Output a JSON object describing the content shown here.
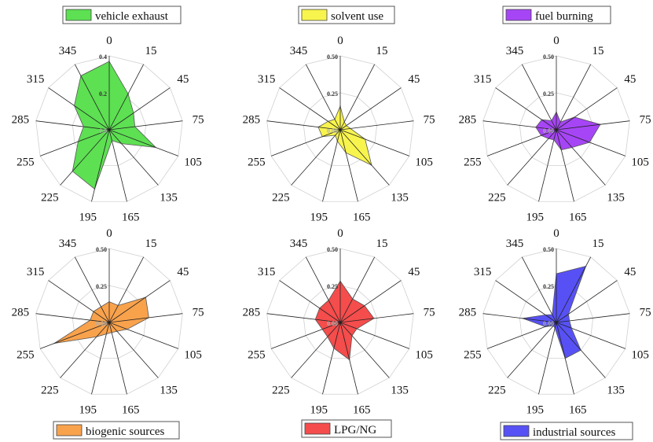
{
  "chart_data": [
    {
      "type": "radar",
      "legend": "vehicle exhaust",
      "color": "#5de052",
      "rmax": 0.4,
      "tick_values": [
        0.4,
        0.2,
        0.0
      ],
      "tick_labels": [
        "0.4",
        "0.2",
        "0.0"
      ],
      "directions": [
        "0",
        "15",
        "45",
        "75",
        "105",
        "135",
        "165",
        "195",
        "225",
        "255",
        "285",
        "315",
        "345"
      ],
      "values": [
        0.37,
        0.22,
        0.16,
        0.14,
        0.27,
        0.1,
        0.06,
        0.33,
        0.3,
        0.18,
        0.14,
        0.23,
        0.33
      ]
    },
    {
      "type": "radar",
      "legend": "solvent use",
      "color": "#f8f44e",
      "rmax": 0.5,
      "tick_values": [
        0.5,
        0.25,
        0.0
      ],
      "tick_labels": [
        "0.50",
        "0.25",
        "0.00"
      ],
      "directions": [
        "0",
        "15",
        "45",
        "75",
        "105",
        "135",
        "165",
        "195",
        "225",
        "255",
        "285",
        "315",
        "345"
      ],
      "values": [
        0.16,
        0.06,
        0.05,
        0.07,
        0.18,
        0.32,
        0.16,
        0.08,
        0.05,
        0.13,
        0.15,
        0.1,
        0.08
      ]
    },
    {
      "type": "radar",
      "legend": "fuel burning",
      "color": "#a645f5",
      "rmax": 0.5,
      "tick_values": [
        0.5,
        0.25,
        0.0
      ],
      "tick_labels": [
        "0.50",
        "0.25",
        "0.00"
      ],
      "directions": [
        "0",
        "15",
        "45",
        "75",
        "105",
        "135",
        "165",
        "195",
        "225",
        "255",
        "285",
        "315",
        "345"
      ],
      "values": [
        0.12,
        0.06,
        0.15,
        0.3,
        0.24,
        0.16,
        0.14,
        0.07,
        0.08,
        0.11,
        0.14,
        0.12,
        0.07
      ]
    },
    {
      "type": "radar",
      "legend": "biogenic sources",
      "color": "#f9a24c",
      "rmax": 0.5,
      "tick_values": [
        0.5,
        0.25,
        0.0
      ],
      "tick_labels": [
        "0.50",
        "0.25",
        "0.00"
      ],
      "directions": [
        "0",
        "15",
        "45",
        "75",
        "105",
        "135",
        "165",
        "195",
        "225",
        "255",
        "285",
        "315",
        "345"
      ],
      "values": [
        0.14,
        0.13,
        0.3,
        0.27,
        0.13,
        0.08,
        0.07,
        0.08,
        0.13,
        0.4,
        0.13,
        0.13,
        0.12
      ]
    },
    {
      "type": "radar",
      "legend": "LPG/NG",
      "color": "#f54c4c",
      "rmax": 0.5,
      "tick_values": [
        0.5,
        0.25,
        0.0
      ],
      "tick_labels": [
        "0.50",
        "0.25",
        "0.00"
      ],
      "directions": [
        "0",
        "15",
        "45",
        "75",
        "105",
        "135",
        "165",
        "195",
        "225",
        "255",
        "285",
        "315",
        "345"
      ],
      "values": [
        0.28,
        0.18,
        0.2,
        0.23,
        0.12,
        0.12,
        0.26,
        0.18,
        0.13,
        0.13,
        0.17,
        0.17,
        0.17
      ]
    },
    {
      "type": "radar",
      "legend": "industrial sources",
      "color": "#5751f5",
      "rmax": 0.5,
      "tick_values": [
        0.5,
        0.25,
        0.0
      ],
      "tick_labels": [
        "0.50",
        "0.25",
        "0.00"
      ],
      "directions": [
        "0",
        "15",
        "45",
        "75",
        "105",
        "135",
        "165",
        "195",
        "225",
        "255",
        "285",
        "315",
        "345"
      ],
      "values": [
        0.33,
        0.43,
        0.1,
        0.09,
        0.11,
        0.25,
        0.25,
        0.04,
        0.03,
        0.08,
        0.23,
        0.09,
        0.06
      ]
    }
  ]
}
